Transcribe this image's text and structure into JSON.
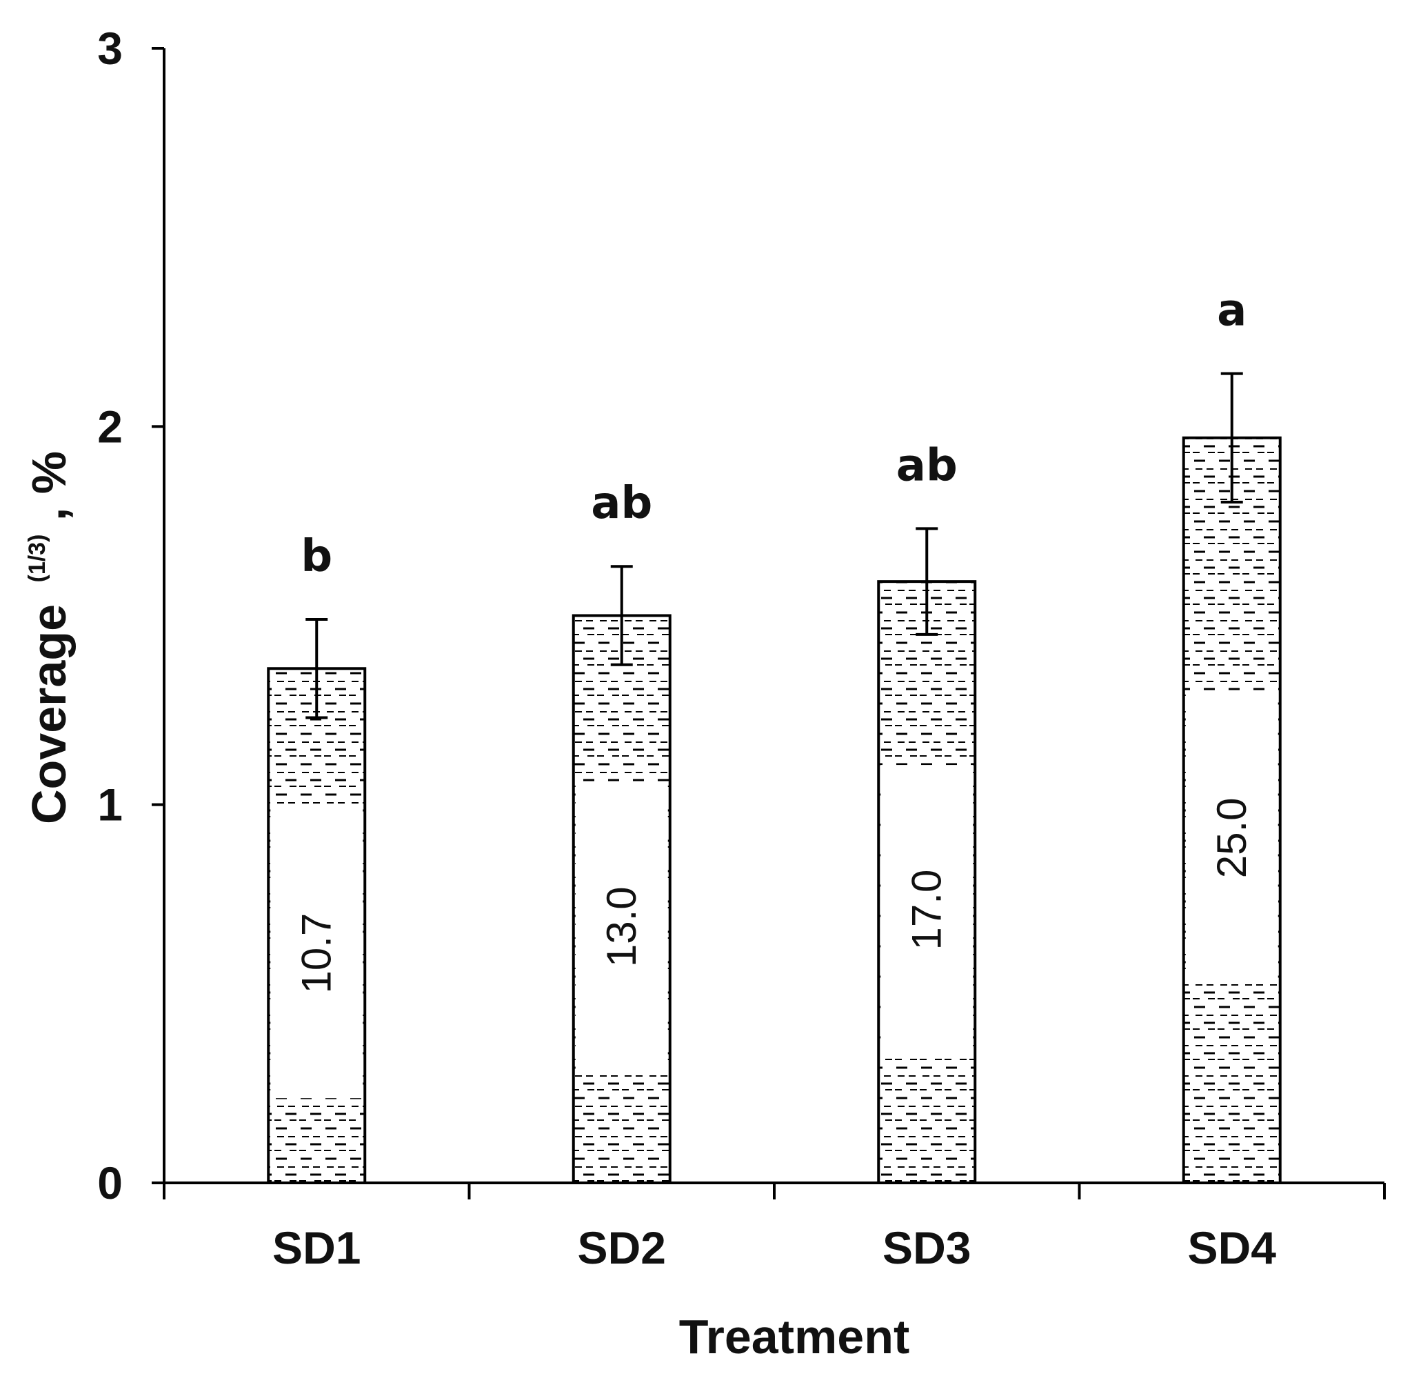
{
  "chart_data": {
    "type": "bar",
    "title": "",
    "xlabel": "Treatment",
    "ylabel": {
      "main": "Coverage",
      "superscript": "(1/3)",
      "unit": ", %"
    },
    "ylim": [
      0,
      3
    ],
    "yticks": [
      "0",
      "1",
      "2",
      "3"
    ],
    "categories": [
      "SD1",
      "SD2",
      "SD3",
      "SD4"
    ],
    "values": [
      1.36,
      1.5,
      1.59,
      1.97
    ],
    "error": [
      0.13,
      0.13,
      0.14,
      0.17
    ],
    "significance": [
      "b",
      "ab",
      "ab",
      "a"
    ],
    "bar_labels": [
      "10.7",
      "13.0",
      "17.0",
      "25.0"
    ],
    "grid": false,
    "bar_fill": "#ffffff",
    "bar_stroke": "#000000",
    "hatch_color": "#000000"
  }
}
